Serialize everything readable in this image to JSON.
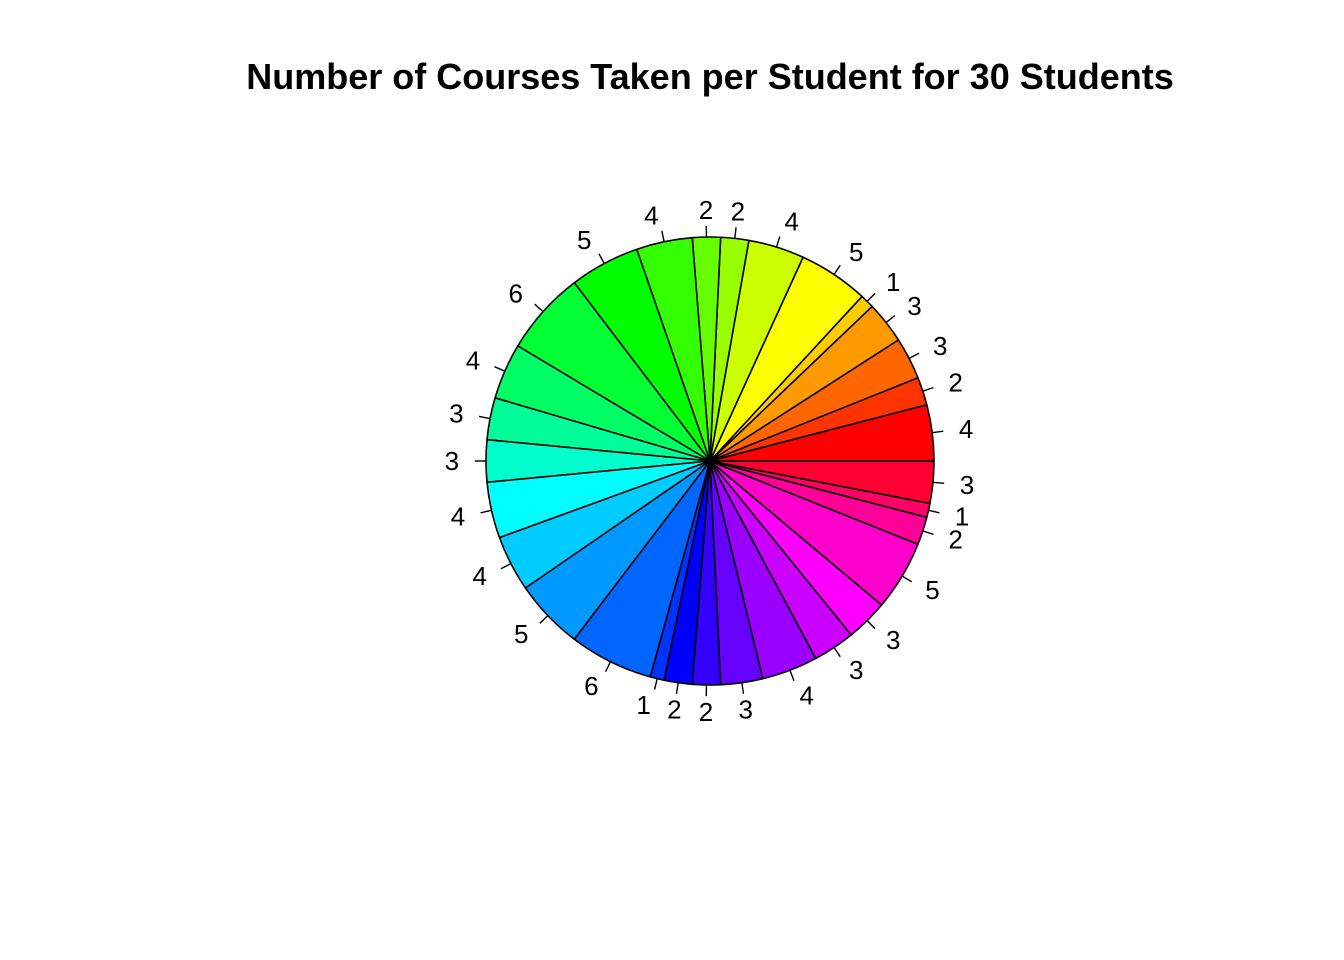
{
  "chart_data": {
    "type": "pie",
    "title": "Number of Courses Taken per Student for 30 Students",
    "values": [
      4,
      2,
      3,
      3,
      1,
      5,
      4,
      2,
      2,
      4,
      5,
      6,
      4,
      3,
      3,
      4,
      4,
      5,
      6,
      1,
      2,
      2,
      3,
      4,
      3,
      3,
      5,
      2,
      1,
      3
    ],
    "labels": [
      "4",
      "2",
      "3",
      "3",
      "1",
      "5",
      "4",
      "2",
      "2",
      "4",
      "5",
      "6",
      "4",
      "3",
      "3",
      "4",
      "4",
      "5",
      "6",
      "1",
      "2",
      "2",
      "3",
      "4",
      "3",
      "3",
      "5",
      "2",
      "1",
      "3"
    ],
    "colors": [
      "#FF0000",
      "#FF3300",
      "#FF6600",
      "#FF9900",
      "#FFCC00",
      "#FFFF00",
      "#CCFF00",
      "#99FF00",
      "#66FF00",
      "#33FF00",
      "#00FF00",
      "#00FF33",
      "#00FF66",
      "#00FF99",
      "#00FFCC",
      "#00FFFF",
      "#00CCFF",
      "#0099FF",
      "#0066FF",
      "#0033FF",
      "#0000FF",
      "#3300FF",
      "#6600FF",
      "#9900FF",
      "#CC00FF",
      "#FF00FF",
      "#FF00CC",
      "#FF0099",
      "#FF0066",
      "#FF0033"
    ],
    "direction": "counterclockwise",
    "start": "3 o'clock",
    "legend": "none"
  }
}
